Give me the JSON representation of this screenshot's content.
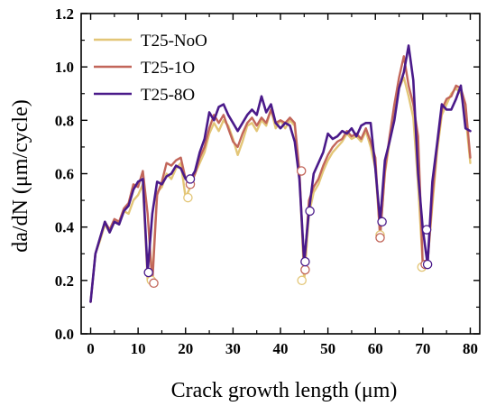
{
  "chart_data": {
    "type": "line",
    "xlabel": "Crack growth length (μm)",
    "ylabel": "da/dN (μm/cycle)",
    "xlim": [
      -2,
      82
    ],
    "ylim": [
      0,
      1.2
    ],
    "xticks": [
      0,
      10,
      20,
      30,
      40,
      50,
      60,
      70,
      80
    ],
    "yticks": [
      0.0,
      0.2,
      0.4,
      0.6,
      0.8,
      1.0,
      1.2
    ],
    "xtick_labels": [
      "0",
      "10",
      "20",
      "30",
      "40",
      "50",
      "60",
      "70",
      "80"
    ],
    "ytick_labels": [
      "0.0",
      "0.2",
      "0.4",
      "0.6",
      "0.8",
      "1.0",
      "1.2"
    ],
    "legend_position": "top-left",
    "grid": false,
    "series": [
      {
        "name": "T25-NoO",
        "color": "#e3c677",
        "points": [
          [
            0,
            0.12
          ],
          [
            1,
            0.3
          ],
          [
            2,
            0.35
          ],
          [
            3,
            0.41
          ],
          [
            4,
            0.38
          ],
          [
            5,
            0.42
          ],
          [
            6,
            0.41
          ],
          [
            7,
            0.46
          ],
          [
            8,
            0.45
          ],
          [
            9,
            0.5
          ],
          [
            10,
            0.52
          ],
          [
            11,
            0.56
          ],
          [
            12,
            0.2
          ],
          [
            13,
            0.22
          ],
          [
            14,
            0.53
          ],
          [
            15,
            0.55
          ],
          [
            16,
            0.6
          ],
          [
            17,
            0.58
          ],
          [
            18,
            0.62
          ],
          [
            19,
            0.64
          ],
          [
            20,
            0.51
          ],
          [
            21,
            0.55
          ],
          [
            22,
            0.6
          ],
          [
            23,
            0.64
          ],
          [
            24,
            0.68
          ],
          [
            25,
            0.75
          ],
          [
            26,
            0.79
          ],
          [
            27,
            0.76
          ],
          [
            28,
            0.8
          ],
          [
            29,
            0.78
          ],
          [
            30,
            0.73
          ],
          [
            31,
            0.67
          ],
          [
            32,
            0.72
          ],
          [
            33,
            0.78
          ],
          [
            34,
            0.79
          ],
          [
            35,
            0.76
          ],
          [
            36,
            0.8
          ],
          [
            37,
            0.78
          ],
          [
            38,
            0.84
          ],
          [
            39,
            0.77
          ],
          [
            40,
            0.8
          ],
          [
            41,
            0.77
          ],
          [
            42,
            0.8
          ],
          [
            43,
            0.78
          ],
          [
            44,
            0.6
          ],
          [
            45,
            0.2
          ],
          [
            46,
            0.45
          ],
          [
            47,
            0.53
          ],
          [
            48,
            0.56
          ],
          [
            49,
            0.61
          ],
          [
            50,
            0.65
          ],
          [
            51,
            0.68
          ],
          [
            52,
            0.7
          ],
          [
            53,
            0.72
          ],
          [
            54,
            0.75
          ],
          [
            55,
            0.73
          ],
          [
            56,
            0.74
          ],
          [
            57,
            0.72
          ],
          [
            58,
            0.76
          ],
          [
            59,
            0.7
          ],
          [
            60,
            0.62
          ],
          [
            61,
            0.37
          ],
          [
            62,
            0.6
          ],
          [
            63,
            0.72
          ],
          [
            64,
            0.84
          ],
          [
            65,
            0.92
          ],
          [
            66,
            0.96
          ],
          [
            67,
            0.89
          ],
          [
            68,
            0.81
          ],
          [
            69,
            0.56
          ],
          [
            70,
            0.25
          ],
          [
            71,
            0.27
          ],
          [
            72,
            0.48
          ],
          [
            73,
            0.68
          ],
          [
            74,
            0.82
          ],
          [
            75,
            0.86
          ],
          [
            76,
            0.9
          ],
          [
            77,
            0.92
          ],
          [
            78,
            0.9
          ],
          [
            79,
            0.82
          ],
          [
            80,
            0.64
          ]
        ]
      },
      {
        "name": "T25-1O",
        "color": "#c2665a",
        "points": [
          [
            0,
            0.12
          ],
          [
            1,
            0.3
          ],
          [
            2,
            0.36
          ],
          [
            3,
            0.42
          ],
          [
            4,
            0.39
          ],
          [
            5,
            0.43
          ],
          [
            6,
            0.42
          ],
          [
            7,
            0.47
          ],
          [
            8,
            0.49
          ],
          [
            9,
            0.56
          ],
          [
            10,
            0.55
          ],
          [
            11,
            0.61
          ],
          [
            12,
            0.45
          ],
          [
            13,
            0.19
          ],
          [
            14,
            0.52
          ],
          [
            15,
            0.57
          ],
          [
            16,
            0.64
          ],
          [
            17,
            0.63
          ],
          [
            18,
            0.65
          ],
          [
            19,
            0.66
          ],
          [
            20,
            0.58
          ],
          [
            21,
            0.56
          ],
          [
            22,
            0.6
          ],
          [
            23,
            0.66
          ],
          [
            24,
            0.7
          ],
          [
            25,
            0.77
          ],
          [
            26,
            0.82
          ],
          [
            27,
            0.79
          ],
          [
            28,
            0.82
          ],
          [
            29,
            0.77
          ],
          [
            30,
            0.72
          ],
          [
            31,
            0.7
          ],
          [
            32,
            0.75
          ],
          [
            33,
            0.79
          ],
          [
            34,
            0.81
          ],
          [
            35,
            0.78
          ],
          [
            36,
            0.81
          ],
          [
            37,
            0.79
          ],
          [
            38,
            0.84
          ],
          [
            39,
            0.79
          ],
          [
            40,
            0.8
          ],
          [
            41,
            0.79
          ],
          [
            42,
            0.81
          ],
          [
            43,
            0.79
          ],
          [
            44,
            0.61
          ],
          [
            45,
            0.24
          ],
          [
            46,
            0.5
          ],
          [
            47,
            0.55
          ],
          [
            48,
            0.58
          ],
          [
            49,
            0.63
          ],
          [
            50,
            0.67
          ],
          [
            51,
            0.7
          ],
          [
            52,
            0.72
          ],
          [
            53,
            0.73
          ],
          [
            54,
            0.76
          ],
          [
            55,
            0.74
          ],
          [
            56,
            0.75
          ],
          [
            57,
            0.73
          ],
          [
            58,
            0.77
          ],
          [
            59,
            0.72
          ],
          [
            60,
            0.66
          ],
          [
            61,
            0.36
          ],
          [
            62,
            0.61
          ],
          [
            63,
            0.74
          ],
          [
            64,
            0.86
          ],
          [
            65,
            0.96
          ],
          [
            66,
            1.04
          ],
          [
            67,
            0.93
          ],
          [
            68,
            0.86
          ],
          [
            69,
            0.74
          ],
          [
            70,
            0.25
          ],
          [
            71,
            0.26
          ],
          [
            72,
            0.51
          ],
          [
            73,
            0.7
          ],
          [
            74,
            0.84
          ],
          [
            75,
            0.88
          ],
          [
            76,
            0.89
          ],
          [
            77,
            0.93
          ],
          [
            78,
            0.92
          ],
          [
            79,
            0.86
          ],
          [
            80,
            0.66
          ]
        ]
      },
      {
        "name": "T25-8O",
        "color": "#4a1a8a",
        "points": [
          [
            0,
            0.12
          ],
          [
            1,
            0.3
          ],
          [
            2,
            0.36
          ],
          [
            3,
            0.42
          ],
          [
            4,
            0.38
          ],
          [
            5,
            0.42
          ],
          [
            6,
            0.41
          ],
          [
            7,
            0.46
          ],
          [
            8,
            0.48
          ],
          [
            9,
            0.54
          ],
          [
            10,
            0.57
          ],
          [
            11,
            0.58
          ],
          [
            12,
            0.23
          ],
          [
            13,
            0.45
          ],
          [
            14,
            0.57
          ],
          [
            15,
            0.56
          ],
          [
            16,
            0.59
          ],
          [
            17,
            0.6
          ],
          [
            18,
            0.63
          ],
          [
            19,
            0.62
          ],
          [
            20,
            0.58
          ],
          [
            21,
            0.58
          ],
          [
            22,
            0.61
          ],
          [
            23,
            0.68
          ],
          [
            24,
            0.73
          ],
          [
            25,
            0.83
          ],
          [
            26,
            0.8
          ],
          [
            27,
            0.85
          ],
          [
            28,
            0.86
          ],
          [
            29,
            0.82
          ],
          [
            30,
            0.79
          ],
          [
            31,
            0.76
          ],
          [
            32,
            0.79
          ],
          [
            33,
            0.82
          ],
          [
            34,
            0.84
          ],
          [
            35,
            0.82
          ],
          [
            36,
            0.89
          ],
          [
            37,
            0.83
          ],
          [
            38,
            0.86
          ],
          [
            39,
            0.79
          ],
          [
            40,
            0.77
          ],
          [
            41,
            0.79
          ],
          [
            42,
            0.78
          ],
          [
            43,
            0.72
          ],
          [
            44,
            0.58
          ],
          [
            45,
            0.27
          ],
          [
            46,
            0.46
          ],
          [
            47,
            0.6
          ],
          [
            48,
            0.64
          ],
          [
            49,
            0.68
          ],
          [
            50,
            0.75
          ],
          [
            51,
            0.73
          ],
          [
            52,
            0.74
          ],
          [
            53,
            0.76
          ],
          [
            54,
            0.75
          ],
          [
            55,
            0.77
          ],
          [
            56,
            0.74
          ],
          [
            57,
            0.78
          ],
          [
            58,
            0.79
          ],
          [
            59,
            0.79
          ],
          [
            60,
            0.62
          ],
          [
            61,
            0.42
          ],
          [
            62,
            0.65
          ],
          [
            63,
            0.72
          ],
          [
            64,
            0.8
          ],
          [
            65,
            0.92
          ],
          [
            66,
            0.98
          ],
          [
            67,
            1.08
          ],
          [
            68,
            0.95
          ],
          [
            69,
            0.6
          ],
          [
            70,
            0.39
          ],
          [
            71,
            0.26
          ],
          [
            72,
            0.57
          ],
          [
            73,
            0.71
          ],
          [
            74,
            0.86
          ],
          [
            75,
            0.84
          ],
          [
            76,
            0.84
          ],
          [
            77,
            0.88
          ],
          [
            78,
            0.93
          ],
          [
            79,
            0.77
          ],
          [
            80,
            0.76
          ]
        ]
      }
    ],
    "highlighted_points": [
      {
        "series": "T25-NoO",
        "points": [
          [
            12.8,
            0.2
          ],
          [
            20.5,
            0.51
          ],
          [
            44.5,
            0.2
          ],
          [
            61,
            0.37
          ],
          [
            69.8,
            0.25
          ]
        ]
      },
      {
        "series": "T25-1O",
        "points": [
          [
            13.3,
            0.19
          ],
          [
            21,
            0.56
          ],
          [
            44.4,
            0.61
          ],
          [
            45.2,
            0.24
          ],
          [
            61,
            0.36
          ],
          [
            70.5,
            0.26
          ]
        ]
      },
      {
        "series": "T25-8O",
        "points": [
          [
            12.2,
            0.23
          ],
          [
            21,
            0.58
          ],
          [
            45.2,
            0.27
          ],
          [
            46.2,
            0.46
          ],
          [
            61.4,
            0.42
          ],
          [
            70.8,
            0.39
          ],
          [
            71,
            0.26
          ]
        ]
      }
    ]
  }
}
